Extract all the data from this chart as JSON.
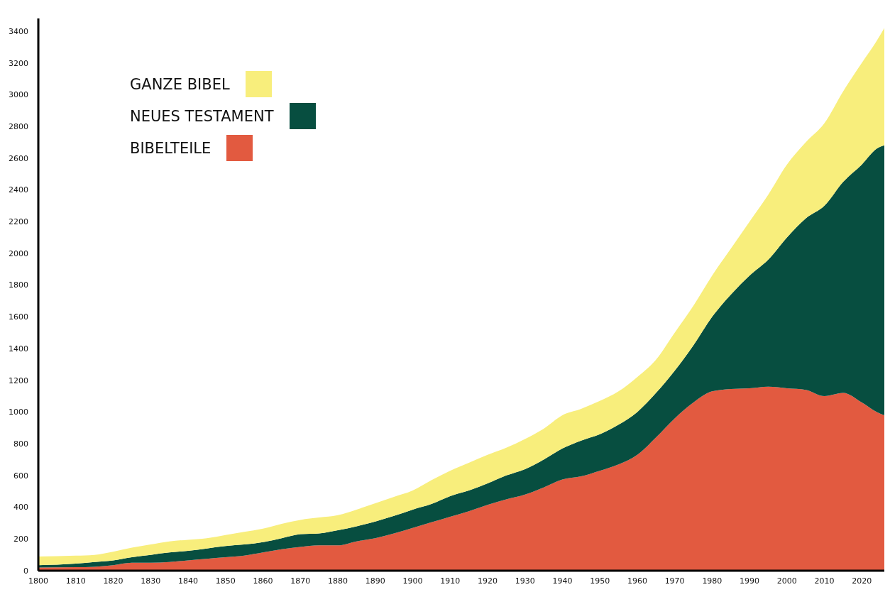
{
  "chart_data": {
    "type": "area",
    "stacked": true,
    "x": [
      1800,
      1810,
      1815,
      1820,
      1825,
      1830,
      1835,
      1840,
      1845,
      1850,
      1855,
      1860,
      1865,
      1870,
      1875,
      1880,
      1885,
      1890,
      1895,
      1900,
      1905,
      1910,
      1915,
      1920,
      1925,
      1930,
      1935,
      1940,
      1945,
      1950,
      1955,
      1960,
      1965,
      1970,
      1975,
      1980,
      1985,
      1990,
      1995,
      2000,
      2005,
      2010,
      2015,
      2020,
      2024,
      2026
    ],
    "series": [
      {
        "name": "BIBELTEILE",
        "color": "#e25a40",
        "values": [
          20,
          22,
          25,
          35,
          50,
          50,
          55,
          65,
          75,
          85,
          95,
          115,
          135,
          150,
          160,
          160,
          185,
          205,
          235,
          270,
          305,
          340,
          375,
          415,
          450,
          480,
          525,
          575,
          595,
          630,
          670,
          730,
          840,
          960,
          1060,
          1130,
          1145,
          1150,
          1160,
          1150,
          1140,
          1100,
          1120,
          1060,
          1000,
          980
        ]
      },
      {
        "name": "NEUES TESTAMENT",
        "color": "#074e40",
        "values": [
          15,
          23,
          30,
          30,
          35,
          50,
          60,
          60,
          65,
          70,
          70,
          65,
          70,
          80,
          75,
          95,
          95,
          105,
          110,
          115,
          115,
          130,
          130,
          135,
          150,
          160,
          175,
          195,
          225,
          230,
          250,
          270,
          280,
          300,
          360,
          470,
          595,
          710,
          800,
          950,
          1080,
          1200,
          1330,
          1500,
          1660,
          1700
        ]
      },
      {
        "name": "GANZE BIBEL",
        "color": "#f8ee7c",
        "values": [
          55,
          50,
          45,
          55,
          60,
          65,
          70,
          70,
          65,
          70,
          80,
          85,
          90,
          90,
          100,
          95,
          105,
          115,
          120,
          120,
          150,
          160,
          175,
          180,
          175,
          190,
          195,
          210,
          200,
          210,
          210,
          220,
          210,
          240,
          250,
          260,
          290,
          340,
          410,
          460,
          480,
          520,
          570,
          640,
          680,
          740
        ]
      }
    ],
    "xlim": [
      1800,
      2026
    ],
    "xticks": [
      1800,
      1810,
      1820,
      1830,
      1840,
      1850,
      1860,
      1870,
      1880,
      1890,
      1900,
      1910,
      1920,
      1930,
      1940,
      1950,
      1960,
      1970,
      1980,
      1990,
      2000,
      2010,
      2020
    ],
    "ylim": [
      0,
      3480
    ],
    "yticks": [
      0,
      200,
      400,
      600,
      800,
      1000,
      1200,
      1400,
      1600,
      1800,
      2000,
      2200,
      2400,
      2600,
      2800,
      3000,
      3200,
      3400
    ],
    "legend": "top left"
  }
}
